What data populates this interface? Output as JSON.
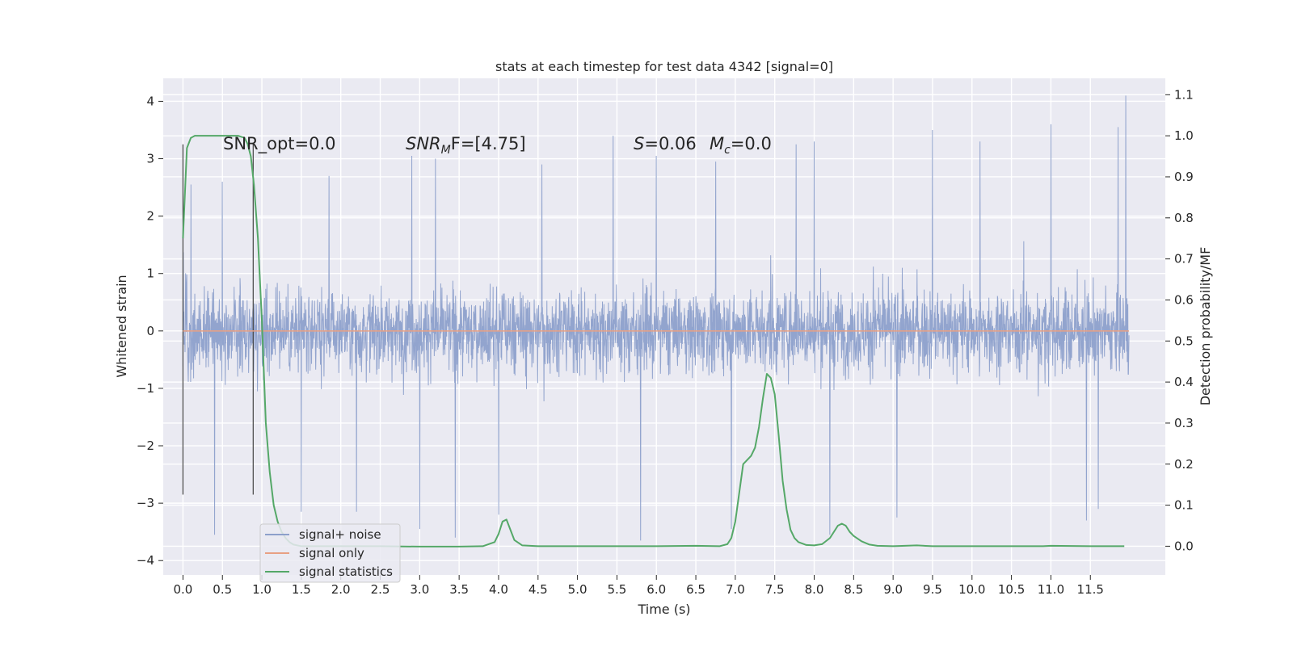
{
  "chart_data": {
    "type": "line",
    "title": "stats at each timestep for test data 4342 [signal=0]",
    "xlabel": "Time (s)",
    "ylabel_left": "Whitened strain",
    "ylabel_right": "Detection probability/MF",
    "xlim": [
      -0.25,
      12.45
    ],
    "ylim_left": [
      -4.25,
      4.4
    ],
    "ylim_right": [
      -0.07,
      1.14
    ],
    "x_ticks": [
      "0.0",
      "0.5",
      "1.0",
      "1.5",
      "2.0",
      "2.5",
      "3.0",
      "3.5",
      "4.0",
      "4.5",
      "5.0",
      "5.5",
      "6.0",
      "6.5",
      "7.0",
      "7.5",
      "8.0",
      "8.5",
      "9.0",
      "9.5",
      "10.0",
      "10.5",
      "11.0",
      "11.5"
    ],
    "y_ticks_left": [
      "4",
      "3",
      "2",
      "1",
      "0",
      "−1",
      "−2",
      "−3",
      "−4"
    ],
    "y_ticks_right": [
      "1.1",
      "1.0",
      "0.9",
      "0.8",
      "0.7",
      "0.6",
      "0.5",
      "0.4",
      "0.3",
      "0.2",
      "0.1",
      "0.0"
    ],
    "grid": true,
    "legend_position": "lower-left",
    "annotations": {
      "snr_opt": "SNR_opt=0.0",
      "snr_mf_base": "SNR",
      "snr_mf_sub": "M",
      "snr_mf_rest": "F=[4.75]",
      "s_sym": "S",
      "s_val": "=0.06",
      "mc_base": "M",
      "mc_sub": "c",
      "mc_val": "=0.0"
    },
    "vlines_x": [
      0.0,
      0.89
    ],
    "series": [
      {
        "name": "signal+ noise",
        "axis": "left",
        "color": "#8da0cb",
        "noise_envelope": {
          "x_start": 0.0,
          "x_end": 11.99,
          "core_amplitude": 1.4,
          "typical_peak": 2.0,
          "max": 4.1,
          "min": -3.7
        },
        "spikes": [
          [
            5.45,
            3.4
          ],
          [
            9.5,
            3.5
          ],
          [
            11.95,
            4.1
          ],
          [
            11.85,
            3.55
          ],
          [
            11.0,
            3.6
          ],
          [
            10.1,
            3.3
          ],
          [
            8.0,
            3.3
          ],
          [
            7.77,
            3.25
          ],
          [
            6.0,
            3.05
          ],
          [
            2.9,
            3.05
          ],
          [
            3.2,
            3.0
          ],
          [
            6.75,
            2.95
          ],
          [
            4.55,
            2.9
          ],
          [
            1.85,
            2.7
          ],
          [
            0.5,
            2.6
          ],
          [
            0.1,
            2.55
          ],
          [
            0.4,
            -3.55
          ],
          [
            3.45,
            -3.6
          ],
          [
            5.8,
            -3.65
          ],
          [
            6.95,
            -3.45
          ],
          [
            8.2,
            -3.55
          ],
          [
            11.45,
            -3.3
          ],
          [
            3.0,
            -3.45
          ],
          [
            4.0,
            -3.2
          ],
          [
            2.2,
            -3.15
          ],
          [
            11.6,
            -3.1
          ],
          [
            1.5,
            -3.15
          ],
          [
            9.05,
            -3.25
          ]
        ]
      },
      {
        "name": "signal only",
        "axis": "left",
        "color": "#e8a083",
        "x": [
          0.0,
          11.99
        ],
        "y": [
          0.0,
          0.0
        ]
      },
      {
        "name": "signal statistics",
        "axis": "right",
        "color": "#55a868",
        "x": [
          0.0,
          0.05,
          0.1,
          0.15,
          0.2,
          0.3,
          0.4,
          0.5,
          0.6,
          0.7,
          0.78,
          0.82,
          0.86,
          0.9,
          0.95,
          1.0,
          1.05,
          1.1,
          1.15,
          1.2,
          1.25,
          1.3,
          1.35,
          1.4,
          1.5,
          2.0,
          2.5,
          3.0,
          3.5,
          3.8,
          3.95,
          4.0,
          4.05,
          4.1,
          4.15,
          4.2,
          4.3,
          4.5,
          5.0,
          5.5,
          6.0,
          6.5,
          6.8,
          6.9,
          6.95,
          7.0,
          7.05,
          7.1,
          7.15,
          7.2,
          7.25,
          7.3,
          7.35,
          7.4,
          7.45,
          7.5,
          7.55,
          7.6,
          7.65,
          7.7,
          7.75,
          7.8,
          7.9,
          8.0,
          8.1,
          8.2,
          8.25,
          8.3,
          8.35,
          8.4,
          8.45,
          8.5,
          8.6,
          8.7,
          8.8,
          9.0,
          9.3,
          9.5,
          10.0,
          10.5,
          10.9,
          11.0,
          11.5,
          11.93
        ],
        "y": [
          0.75,
          0.97,
          0.995,
          1.0,
          1.0,
          1.0,
          1.0,
          1.0,
          1.0,
          1.0,
          0.995,
          0.98,
          0.95,
          0.88,
          0.75,
          0.55,
          0.3,
          0.18,
          0.1,
          0.06,
          0.035,
          0.02,
          0.01,
          0.004,
          0.0,
          0.0,
          0.0,
          -0.001,
          -0.001,
          0.0,
          0.01,
          0.03,
          0.06,
          0.065,
          0.04,
          0.015,
          0.002,
          0.0,
          0.0,
          0.0,
          0.0,
          0.001,
          0.0,
          0.005,
          0.02,
          0.06,
          0.13,
          0.2,
          0.21,
          0.22,
          0.24,
          0.29,
          0.36,
          0.42,
          0.41,
          0.37,
          0.27,
          0.16,
          0.09,
          0.04,
          0.02,
          0.01,
          0.003,
          0.002,
          0.005,
          0.02,
          0.035,
          0.05,
          0.055,
          0.05,
          0.035,
          0.025,
          0.012,
          0.004,
          0.001,
          0.0,
          0.002,
          0.0,
          0.0,
          0.0,
          0.0,
          0.001,
          0.0,
          0.0
        ]
      }
    ]
  }
}
